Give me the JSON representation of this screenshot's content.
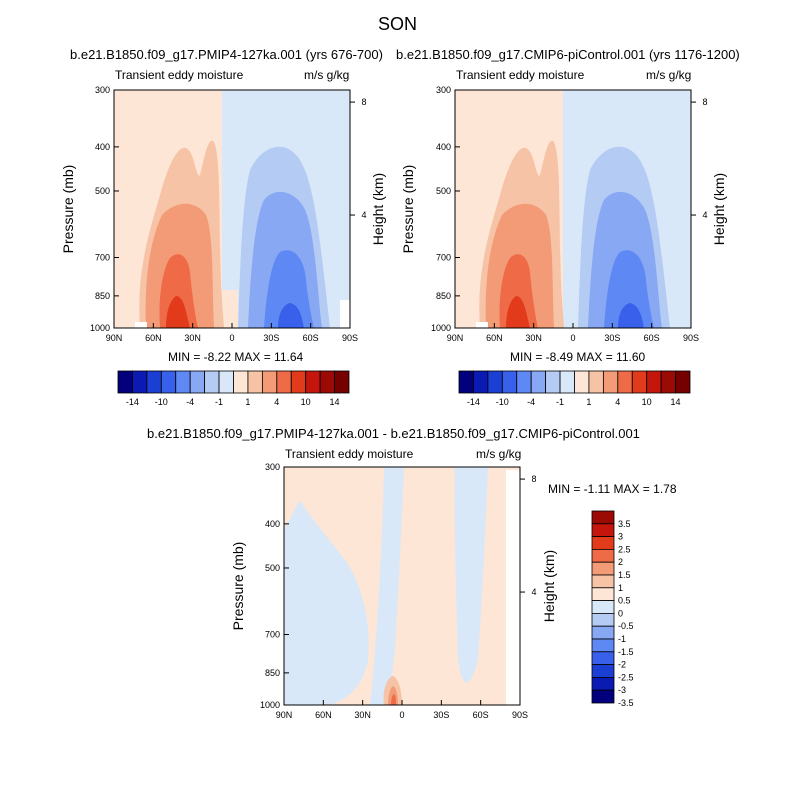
{
  "title": "SON",
  "chart_data": [
    {
      "type": "contour",
      "title": "b.e21.B1850.f09_g17.PMIP4-127ka.001 (yrs 676-700)",
      "left_label": "Transient eddy moisture",
      "right_label": "m/s g/kg",
      "ylabel": "Pressure (mb)",
      "ylabel_right": "Height (km)",
      "x_ticks": [
        "90N",
        "60N",
        "30N",
        "0",
        "30S",
        "60S",
        "90S"
      ],
      "y_ticks": [
        "300",
        "400",
        "500",
        "700",
        "850",
        "1000"
      ],
      "y_ticks_right": [
        "8",
        "4"
      ],
      "stats_text": "MIN = -8.22  MAX = 11.64",
      "min": -8.22,
      "max": 11.64,
      "colorbar_labels": [
        "-14",
        "-10",
        "-4",
        "-1",
        "1",
        "4",
        "10",
        "14"
      ]
    },
    {
      "type": "contour",
      "title": "b.e21.B1850.f09_g17.CMIP6-piControl.001 (yrs 1176-1200)",
      "left_label": "Transient eddy moisture",
      "right_label": "m/s g/kg",
      "ylabel": "Pressure (mb)",
      "ylabel_right": "Height (km)",
      "x_ticks": [
        "90N",
        "60N",
        "30N",
        "0",
        "30S",
        "60S",
        "90S"
      ],
      "y_ticks": [
        "300",
        "400",
        "500",
        "700",
        "850",
        "1000"
      ],
      "y_ticks_right": [
        "8",
        "4"
      ],
      "stats_text": "MIN = -8.49  MAX = 11.60",
      "min": -8.49,
      "max": 11.6,
      "colorbar_labels": [
        "-14",
        "-10",
        "-4",
        "-1",
        "1",
        "4",
        "10",
        "14"
      ]
    },
    {
      "type": "contour",
      "title": "b.e21.B1850.f09_g17.PMIP4-127ka.001 - b.e21.B1850.f09_g17.CMIP6-piControl.001",
      "left_label": "Transient eddy moisture",
      "right_label": "m/s g/kg",
      "ylabel": "Pressure (mb)",
      "ylabel_right": "Height (km)",
      "x_ticks": [
        "90N",
        "60N",
        "30N",
        "0",
        "30S",
        "60S",
        "90S"
      ],
      "y_ticks": [
        "300",
        "400",
        "500",
        "700",
        "850",
        "1000"
      ],
      "y_ticks_right": [
        "8",
        "4"
      ],
      "stats_text": "MIN =  -1.11   MAX =   1.78",
      "min": -1.11,
      "max": 1.78,
      "colorbar_labels": [
        "3.5",
        "3",
        "2.5",
        "2",
        "1.5",
        "1",
        "0.5",
        "0",
        "-0.5",
        "-1",
        "-1.5",
        "-2",
        "-2.5",
        "-3",
        "-3.5"
      ]
    }
  ],
  "colors": {
    "h_colorbar": [
      "#02007c",
      "#0a1ab2",
      "#1c3fd3",
      "#3860ea",
      "#5e88f4",
      "#88a8f3",
      "#b4ccf4",
      "#d9e8f8",
      "#fde6d6",
      "#f7c3a6",
      "#f39b77",
      "#ef6b47",
      "#e13b1c",
      "#c4160c",
      "#9c0a06",
      "#760000"
    ],
    "v_colorbar": [
      "#9c0a06",
      "#c4160c",
      "#e13b1c",
      "#ef6b47",
      "#f39b77",
      "#f7c3a6",
      "#fde6d6",
      "#d9e8f8",
      "#b4ccf4",
      "#88a8f3",
      "#5e88f4",
      "#3860ea",
      "#1c3fd3",
      "#0a1ab2",
      "#02007c"
    ]
  }
}
